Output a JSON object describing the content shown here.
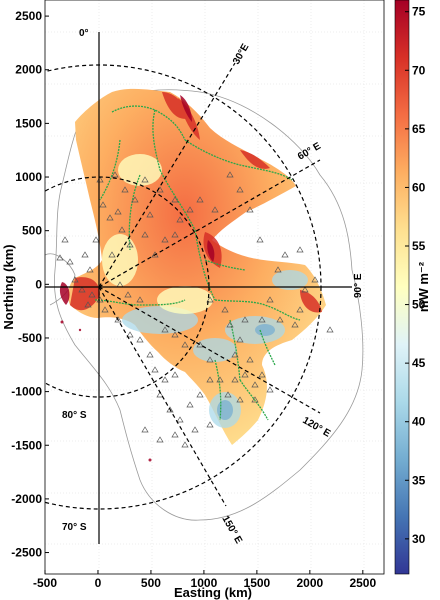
{
  "map": {
    "xlabel": "Easting (km)",
    "ylabel": "Northing (km)",
    "x_ticks": [
      -500,
      0,
      500,
      1000,
      1500,
      2000,
      2500
    ],
    "y_ticks": [
      2500,
      2000,
      1500,
      1000,
      500,
      0,
      -500,
      -1000,
      -1500,
      -2000,
      -2500
    ],
    "xlim": [
      -500,
      2700
    ],
    "ylim": [
      -2700,
      2650
    ],
    "longitude_labels": [
      "0°",
      "30°E",
      "60° E",
      "90° E",
      "120° E",
      "150° E"
    ],
    "latitude_labels": [
      "80° S",
      "70° S"
    ]
  },
  "colorbar": {
    "label": "mW m⁻²",
    "ticks": [
      75,
      70,
      65,
      60,
      55,
      50,
      45,
      40,
      35,
      30
    ],
    "range": [
      27,
      76
    ],
    "colormap": "RdYlBu_r",
    "colors": [
      "#313695",
      "#4575b4",
      "#74add1",
      "#abd9e9",
      "#e0f3f8",
      "#ffffbf",
      "#fee090",
      "#fdae61",
      "#f46d43",
      "#d73027",
      "#a50026"
    ]
  },
  "style": {
    "river_color": "#2aa84a",
    "coast_color": "#9a9a9a",
    "station_marker": "triangle"
  }
}
